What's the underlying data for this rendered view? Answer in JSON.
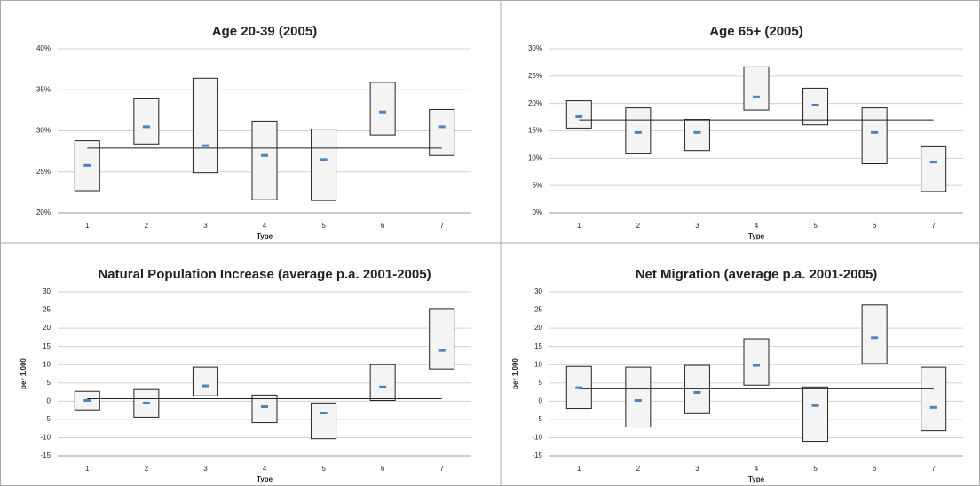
{
  "chart_data": [
    {
      "type": "range",
      "title": "Age 20-39 (2005)",
      "x_label": "Type",
      "categories": [
        "1",
        "2",
        "3",
        "4",
        "5",
        "6",
        "7"
      ],
      "high": [
        28.8,
        33.9,
        36.4,
        31.2,
        30.2,
        35.9,
        32.6
      ],
      "low": [
        22.7,
        28.4,
        24.9,
        21.6,
        21.5,
        29.5,
        27.0
      ],
      "mean": [
        25.8,
        30.5,
        28.2,
        27.0,
        26.5,
        32.3,
        30.5
      ],
      "average": 27.9,
      "box_color": "#f4f4f4",
      "mean_color": "#4f81bd",
      "ylim": [
        20,
        40
      ],
      "yticks": [
        {
          "value": 20,
          "label": "20%"
        },
        {
          "value": 25,
          "label": "25%"
        },
        {
          "value": 30,
          "label": "30%"
        },
        {
          "value": 35,
          "label": "35%"
        },
        {
          "value": 40,
          "label": "40%"
        }
      ],
      "grid": true
    },
    {
      "type": "range",
      "title": "Age 65+ (2005)",
      "x_label": "Type",
      "categories": [
        "1",
        "2",
        "3",
        "4",
        "5",
        "6",
        "7"
      ],
      "high": [
        20.5,
        19.2,
        17.1,
        26.7,
        22.8,
        19.2,
        12.1
      ],
      "low": [
        15.5,
        10.8,
        11.4,
        18.8,
        16.1,
        9.0,
        3.9
      ],
      "mean": [
        17.6,
        14.7,
        14.7,
        21.2,
        19.7,
        14.7,
        9.3
      ],
      "average": 17.0,
      "box_color": "#f4f4f4",
      "mean_color": "#4f81bd",
      "ylim": [
        0,
        30
      ],
      "yticks": [
        {
          "value": 0,
          "label": "0%"
        },
        {
          "value": 5,
          "label": "5%"
        },
        {
          "value": 10,
          "label": "10%"
        },
        {
          "value": 15,
          "label": "15%"
        },
        {
          "value": 20,
          "label": "20%"
        },
        {
          "value": 25,
          "label": "25%"
        },
        {
          "value": 30,
          "label": "30%"
        }
      ],
      "grid": true
    },
    {
      "type": "range",
      "title": "Natural Population Increase (average p.a. 2001-2005)",
      "x_label": "Type",
      "y_label": "per 1.000",
      "categories": [
        "1",
        "2",
        "3",
        "4",
        "5",
        "6",
        "7"
      ],
      "high": [
        2.7,
        3.2,
        9.3,
        1.7,
        -0.5,
        10.0,
        25.4
      ],
      "low": [
        -2.4,
        -4.4,
        1.5,
        -5.9,
        -10.3,
        0.2,
        8.8
      ],
      "mean": [
        0.2,
        -0.5,
        4.2,
        -1.5,
        -3.2,
        3.9,
        13.9
      ],
      "average": 0.7,
      "box_color": "#f4f4f4",
      "mean_color": "#4f81bd",
      "ylim": [
        -15,
        30
      ],
      "yticks": [
        -15,
        -10,
        -5,
        0,
        5,
        10,
        15,
        20,
        25,
        30
      ],
      "grid": true
    },
    {
      "type": "range",
      "title": "Net Migration (average p.a. 2001-2005)",
      "x_label": "Type",
      "y_label": "per 1.000",
      "categories": [
        "1",
        "2",
        "3",
        "4",
        "5",
        "6",
        "7"
      ],
      "high": [
        9.5,
        9.3,
        9.8,
        17.1,
        3.9,
        26.4,
        9.3
      ],
      "low": [
        -2.0,
        -7.1,
        -3.4,
        4.4,
        -11.0,
        10.3,
        -8.1
      ],
      "mean": [
        3.7,
        0.2,
        2.4,
        9.8,
        -1.2,
        17.4,
        -1.7
      ],
      "average": 3.4,
      "box_color": "#f4f4f4",
      "mean_color": "#4f81bd",
      "ylim": [
        -15,
        30
      ],
      "yticks": [
        -15,
        -10,
        -5,
        0,
        5,
        10,
        15,
        20,
        25,
        30
      ],
      "grid": true
    }
  ]
}
